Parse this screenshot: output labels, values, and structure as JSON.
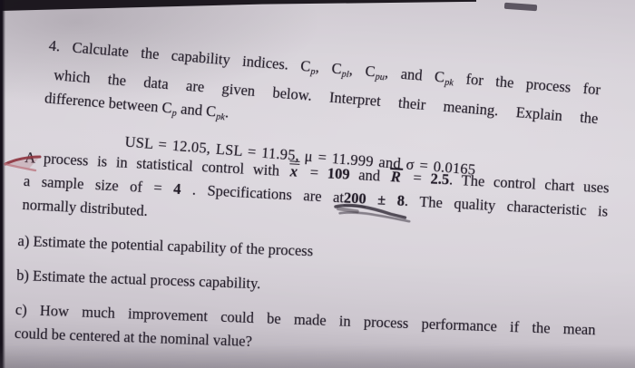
{
  "colors": {
    "paper": "#d8d3da",
    "ink": "#221c28",
    "red_mark": "#8e3540",
    "pencil_mark": "#3a3440"
  },
  "document": {
    "problem4": {
      "lines": [
        {
          "cls": "just ind-a1",
          "name": "problem4-line-1",
          "runs": [
            {
              "t": "4.  Calculate the capability indices. C"
            },
            {
              "t": "p",
              "c": "sub",
              "n": "cp-subscript"
            },
            {
              "t": ", C"
            },
            {
              "t": "pl",
              "c": "sub",
              "n": "cpl-subscript"
            },
            {
              "t": ", C"
            },
            {
              "t": "pu",
              "c": "sub",
              "n": "cpu-subscript"
            },
            {
              "t": ", and C"
            },
            {
              "t": "pk",
              "c": "sub",
              "n": "cpk-subscript"
            },
            {
              "t": " for the process for"
            }
          ]
        },
        {
          "cls": "just ind-a2",
          "name": "problem4-line-2",
          "runs": [
            {
              "t": "which the data are given below. Interpret their meaning. Explain the"
            }
          ]
        },
        {
          "cls": "ind-a3",
          "name": "problem4-line-3",
          "runs": [
            {
              "t": "difference between C"
            },
            {
              "t": "p",
              "c": "sub",
              "n": "cp-subscript"
            },
            {
              "t": " and C"
            },
            {
              "t": "pk",
              "c": "sub",
              "n": "cpk-subscript"
            },
            {
              "t": "."
            }
          ]
        },
        {
          "cls": "usl-line",
          "name": "given-values-line",
          "runs": [
            {
              "t": "USL = 12.05, LSL = 11.95, μ = 11.999 and σ = 0.0165",
              "n": "given-values-text"
            }
          ]
        }
      ]
    },
    "process_paragraph": {
      "lines": [
        {
          "cls": "just",
          "name": "process-line-1",
          "runs": [
            {
              "t": "A process is in statistical control with "
            },
            {
              "t": "x",
              "c": "ov2",
              "n": "x-double-bar"
            },
            {
              "t": " = "
            },
            {
              "t": "109",
              "c": "b",
              "n": "xbar-value"
            },
            {
              "t": " and "
            },
            {
              "t": "R",
              "c": "ov1",
              "n": "r-bar"
            },
            {
              "t": " = "
            },
            {
              "t": "2.5",
              "c": "b",
              "n": "rbar-value"
            },
            {
              "t": ". The control chart uses"
            }
          ]
        },
        {
          "cls": "just",
          "name": "process-line-2",
          "runs": [
            {
              "t": "a sample size of = "
            },
            {
              "t": "4",
              "c": "b",
              "n": "sample-size-value"
            },
            {
              "t": " . Specifications are at"
            },
            {
              "t": "200",
              "c": "b u",
              "n": "spec-nominal-value"
            },
            {
              "t": " ± 8",
              "c": "b",
              "n": "spec-tolerance-value"
            },
            {
              "t": ". The quality characteristic is"
            }
          ]
        },
        {
          "cls": "",
          "name": "process-line-3",
          "runs": [
            {
              "t": "normally distributed."
            }
          ]
        }
      ]
    },
    "questions": {
      "lines": [
        {
          "cls": "",
          "name": "question-a",
          "runs": [
            {
              "t": "a) Estimate the potential capability of the process"
            }
          ]
        },
        {
          "cls": "mt",
          "name": "question-b",
          "runs": [
            {
              "t": "b) Estimate the actual process capability."
            }
          ]
        },
        {
          "cls": "mt just",
          "name": "question-c-line-1",
          "runs": [
            {
              "t": "c) How much improvement could be made in process performance if the mean"
            }
          ]
        },
        {
          "cls": "",
          "name": "question-c-line-2",
          "runs": [
            {
              "t": "could be centered at the nominal value?"
            }
          ]
        }
      ]
    }
  },
  "annotations": {
    "red_arrow": "handwritten red arrow mark pointing at 'A process' paragraph",
    "pencil_mark": "handwritten pencil double underline below '200 ± 8'"
  }
}
